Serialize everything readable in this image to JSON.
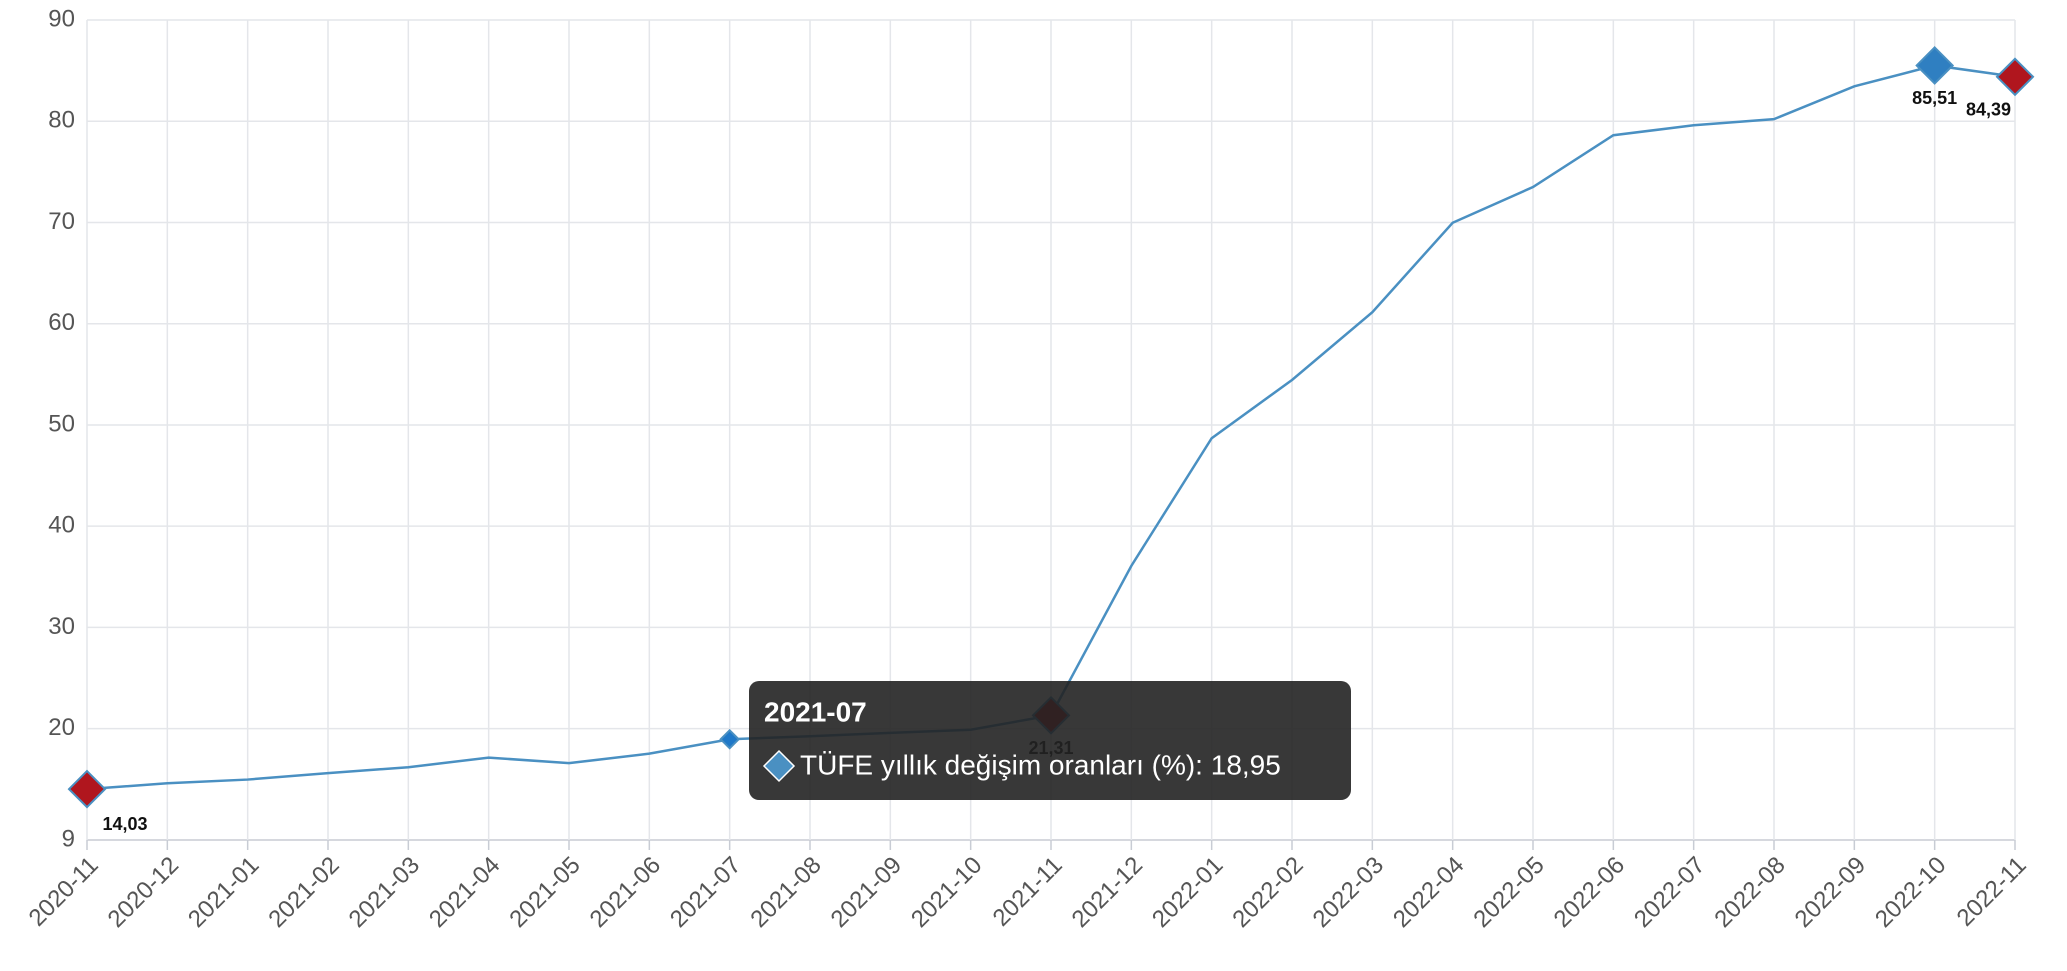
{
  "chart_data": {
    "type": "line",
    "categories": [
      "2020-11",
      "2020-12",
      "2021-01",
      "2021-02",
      "2021-03",
      "2021-04",
      "2021-05",
      "2021-06",
      "2021-07",
      "2021-08",
      "2021-09",
      "2021-10",
      "2021-11",
      "2021-12",
      "2022-01",
      "2022-02",
      "2022-03",
      "2022-04",
      "2022-05",
      "2022-06",
      "2022-07",
      "2022-08",
      "2022-09",
      "2022-10",
      "2022-11"
    ],
    "series": [
      {
        "name": "TÜFE yıllık değişim oranları (%)",
        "color": "#4a90c2",
        "values": [
          14.03,
          14.6,
          14.97,
          15.61,
          16.19,
          17.14,
          16.59,
          17.53,
          18.95,
          19.25,
          19.58,
          19.89,
          21.31,
          36.08,
          48.69,
          54.44,
          61.14,
          69.97,
          73.5,
          78.62,
          79.6,
          80.21,
          83.45,
          85.51,
          84.39
        ],
        "value_labels": [
          "14,03",
          null,
          null,
          null,
          null,
          null,
          null,
          null,
          null,
          null,
          null,
          null,
          "21,31",
          null,
          null,
          null,
          null,
          null,
          null,
          null,
          null,
          null,
          null,
          "85,51",
          "84,39"
        ],
        "marker_colors": [
          "#b0161e",
          null,
          null,
          null,
          null,
          null,
          null,
          null,
          "#1f78c8",
          null,
          null,
          null,
          "#b0161e",
          null,
          null,
          null,
          null,
          null,
          null,
          null,
          null,
          null,
          null,
          "#2f7fc1",
          "#b0161e"
        ]
      }
    ],
    "ylim": [
      9,
      90
    ],
    "yticks": [
      9,
      20,
      30,
      40,
      50,
      60,
      70,
      80,
      90
    ],
    "grid": true,
    "tooltip": {
      "title": "2021-07",
      "text": "TÜFE yıllık değişim oranları (%): 18,95"
    }
  }
}
